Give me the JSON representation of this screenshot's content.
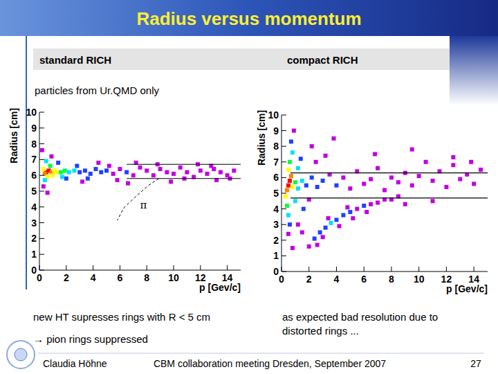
{
  "slide": {
    "title": "Radius versus momentum",
    "note": "particles from Ur.QMD only",
    "captions_left": [
      "new HT supresses rings with R < 5 cm",
      "→ pion rings suppressed"
    ],
    "caption_right": "as expected bad resolution due to distorted rings ...",
    "footer": {
      "author": "Claudia Höhne",
      "event": "CBM collaboration meeting Dresden, September 2007",
      "page": 27
    }
  },
  "chart_data": [
    {
      "type": "scatter",
      "title": "standard RICH",
      "x_label": "p [Gev/c]",
      "y_label": "Radius [cm]",
      "xlim": [
        0,
        15
      ],
      "ylim": [
        0,
        10
      ],
      "xticks": [
        0,
        2,
        4,
        6,
        8,
        10,
        12,
        14
      ],
      "yticks": [
        0,
        1,
        2,
        3,
        4,
        5,
        6,
        7,
        8,
        9,
        10
      ],
      "marker": "square",
      "x": [
        0.5,
        0.7,
        0.9,
        0.4,
        1.1,
        1.3,
        0.3,
        1.6,
        1.9,
        2.2,
        0.6,
        0.8,
        0.4,
        0.5,
        2.6,
        3.0,
        3.4,
        3.8,
        4.2,
        4.6,
        5.0,
        5.5,
        6.0,
        6.5,
        7.0,
        7.5,
        8.0,
        8.5,
        9.0,
        9.5,
        10.0,
        10.5,
        11.0,
        11.5,
        12.0,
        12.5,
        13.0,
        13.5,
        14.0,
        14.5,
        3.2,
        4.4,
        5.8,
        7.2,
        9.8,
        11.8,
        13.2,
        2.0,
        1.4,
        0.9,
        0.3,
        6.6,
        8.8,
        10.8,
        12.8,
        14.2,
        2.8,
        1.7,
        1.0,
        3.6,
        5.2,
        0.2,
        0.6
      ],
      "values": [
        6.2,
        6.3,
        6.2,
        6.1,
        6.3,
        6.2,
        6.4,
        6.2,
        6.3,
        6.2,
        5.9,
        6.6,
        5.7,
        6.9,
        6.3,
        6.2,
        6.3,
        6.1,
        6.4,
        6.2,
        6.3,
        6.1,
        6.4,
        6.2,
        6.0,
        6.5,
        6.3,
        6.0,
        6.4,
        6.2,
        6.1,
        6.5,
        6.2,
        5.9,
        6.3,
        6.1,
        6.4,
        6.2,
        6.0,
        6.3,
        5.6,
        6.8,
        5.7,
        6.8,
        5.6,
        6.7,
        5.7,
        5.8,
        6.8,
        7.2,
        5.3,
        5.5,
        6.7,
        5.8,
        6.6,
        5.8,
        6.6,
        5.9,
        6.0,
        5.8,
        6.6,
        7.6,
        4.9
      ],
      "colors": [
        "#ff0000",
        "#ff0000",
        "#ff8000",
        "#ff8000",
        "#ffff00",
        "#ffff00",
        "#ffff00",
        "#00ff40",
        "#00ff40",
        "#00e0ff",
        "#ffff00",
        "#00ff40",
        "#00e0ff",
        "#00e0ff",
        "#00e0ff",
        "#2040ff",
        "#2040ff",
        "#2040ff",
        "#2040ff",
        "#2040ff",
        "#2040ff",
        "#c000e0",
        "#c000e0",
        "#2040ff",
        "#c000e0",
        "#c000e0",
        "#c000e0",
        "#c000e0",
        "#c000e0",
        "#c000e0",
        "#c000e0",
        "#c000e0",
        "#c000e0",
        "#c000e0",
        "#c000e0",
        "#c000e0",
        "#c000e0",
        "#c000e0",
        "#c000e0",
        "#c000e0",
        "#c000e0",
        "#c000e0",
        "#c000e0",
        "#c000e0",
        "#c000e0",
        "#c000e0",
        "#c000e0",
        "#2040ff",
        "#2040ff",
        "#c000e0",
        "#c000e0",
        "#c000e0",
        "#c000e0",
        "#c000e0",
        "#c000e0",
        "#c000e0",
        "#2040ff",
        "#00e0ff",
        "#ffff00",
        "#2040ff",
        "#c000e0",
        "#c000e0",
        "#c000e0"
      ],
      "hlines": [
        {
          "y": 6.7,
          "x": [
            6.5,
            15
          ]
        },
        {
          "y": 5.8,
          "x": [
            6.5,
            15
          ]
        }
      ],
      "curve": {
        "x": [
          8.9,
          8.1,
          7.1,
          6.3,
          5.8
        ],
        "values": [
          5.8,
          5.35,
          4.6,
          3.95,
          3.15
        ],
        "line_style": "dashed"
      },
      "annotation": {
        "text": "π",
        "x": 7.5,
        "y": 3.9
      }
    },
    {
      "type": "scatter",
      "title": "compact RICH",
      "x_label": "p [Gev/c]",
      "y_label": "Radius [cm]",
      "xlim": [
        0,
        15
      ],
      "ylim": [
        0,
        10
      ],
      "xticks": [
        0,
        2,
        4,
        6,
        8,
        10,
        12,
        14
      ],
      "yticks": [
        0,
        1,
        2,
        3,
        4,
        5,
        6,
        7,
        8,
        9,
        10
      ],
      "marker": "square",
      "x": [
        0.5,
        0.6,
        0.4,
        0.7,
        0.8,
        0.5,
        0.3,
        1.0,
        0.6,
        0.4,
        1.2,
        0.8,
        0.5,
        1.5,
        0.7,
        0.6,
        1.8,
        1.2,
        1.0,
        2.2,
        2.6,
        3.0,
        1.4,
        1.6,
        0.9,
        0.5,
        3.5,
        4.0,
        4.5,
        5.0,
        5.5,
        6.0,
        6.5,
        7.0,
        7.5,
        8.0,
        8.5,
        9.0,
        9.5,
        10.0,
        10.5,
        11.0,
        11.5,
        12.0,
        12.5,
        13.0,
        13.5,
        14.0,
        14.5,
        2.5,
        3.2,
        2.0,
        2.0,
        2.4,
        2.8,
        3.2,
        3.6,
        4.0,
        4.5,
        5.0,
        5.5,
        6.0,
        6.5,
        7.0,
        7.5,
        8.0,
        2.6,
        3.0,
        3.4,
        4.2,
        4.8,
        5.2,
        6.2,
        8.5,
        9.0,
        1.5,
        2.2,
        0.8,
        1.2,
        3.8,
        6.8,
        9.5,
        12.5,
        11.0,
        13.8
      ],
      "values": [
        5.5,
        5.8,
        5.2,
        6.1,
        5.4,
        6.5,
        4.8,
        5.7,
        7.0,
        4.2,
        5.3,
        7.6,
        3.6,
        5.8,
        8.3,
        3.0,
        5.5,
        6.6,
        4.5,
        6.0,
        5.4,
        5.8,
        7.2,
        4.0,
        9.0,
        2.4,
        6.2,
        5.5,
        6.0,
        5.3,
        6.4,
        5.6,
        5.9,
        6.6,
        5.2,
        6.0,
        5.7,
        6.3,
        5.5,
        6.1,
        7.0,
        5.8,
        6.4,
        5.4,
        6.8,
        5.9,
        6.2,
        5.6,
        6.5,
        7.0,
        7.4,
        4.6,
        1.6,
        2.1,
        2.5,
        2.8,
        3.1,
        3.3,
        3.6,
        3.8,
        4.0,
        4.2,
        4.3,
        4.4,
        4.6,
        4.6,
        1.7,
        2.2,
        3.4,
        2.9,
        4.1,
        3.4,
        3.8,
        4.8,
        4.3,
        2.5,
        8.0,
        1.5,
        3.0,
        8.5,
        7.5,
        7.8,
        7.3,
        4.5,
        7.0
      ],
      "colors": [
        "#ff0000",
        "#ff0000",
        "#ff8000",
        "#ff8000",
        "#ffff00",
        "#ffff00",
        "#ffff00",
        "#00ff40",
        "#00ff40",
        "#00ff40",
        "#00e0ff",
        "#00e0ff",
        "#00e0ff",
        "#00e0ff",
        "#2040ff",
        "#2040ff",
        "#2040ff",
        "#00e0ff",
        "#00e0ff",
        "#2040ff",
        "#2040ff",
        "#2040ff",
        "#2040ff",
        "#2040ff",
        "#c000e0",
        "#c000e0",
        "#c000e0",
        "#2040ff",
        "#c000e0",
        "#c000e0",
        "#c000e0",
        "#c000e0",
        "#c000e0",
        "#c000e0",
        "#c000e0",
        "#c000e0",
        "#c000e0",
        "#c000e0",
        "#c000e0",
        "#c000e0",
        "#c000e0",
        "#c000e0",
        "#c000e0",
        "#c000e0",
        "#c000e0",
        "#c000e0",
        "#c000e0",
        "#c000e0",
        "#c000e0",
        "#c000e0",
        "#c000e0",
        "#c000e0",
        "#c000e0",
        "#2040ff",
        "#2040ff",
        "#2040ff",
        "#00e0ff",
        "#2040ff",
        "#2040ff",
        "#2040ff",
        "#c000e0",
        "#2040ff",
        "#c000e0",
        "#c000e0",
        "#c000e0",
        "#c000e0",
        "#c000e0",
        "#c000e0",
        "#c000e0",
        "#c000e0",
        "#c000e0",
        "#c000e0",
        "#c000e0",
        "#c000e0",
        "#c000e0",
        "#c000e0",
        "#c000e0",
        "#c000e0",
        "#c000e0",
        "#c000e0",
        "#c000e0",
        "#c000e0",
        "#c000e0",
        "#c000e0",
        "#c000e0"
      ],
      "hlines": [
        {
          "y": 6.3,
          "x": [
            0.65,
            15
          ]
        },
        {
          "y": 4.7,
          "x": [
            0.65,
            15
          ]
        }
      ]
    }
  ]
}
